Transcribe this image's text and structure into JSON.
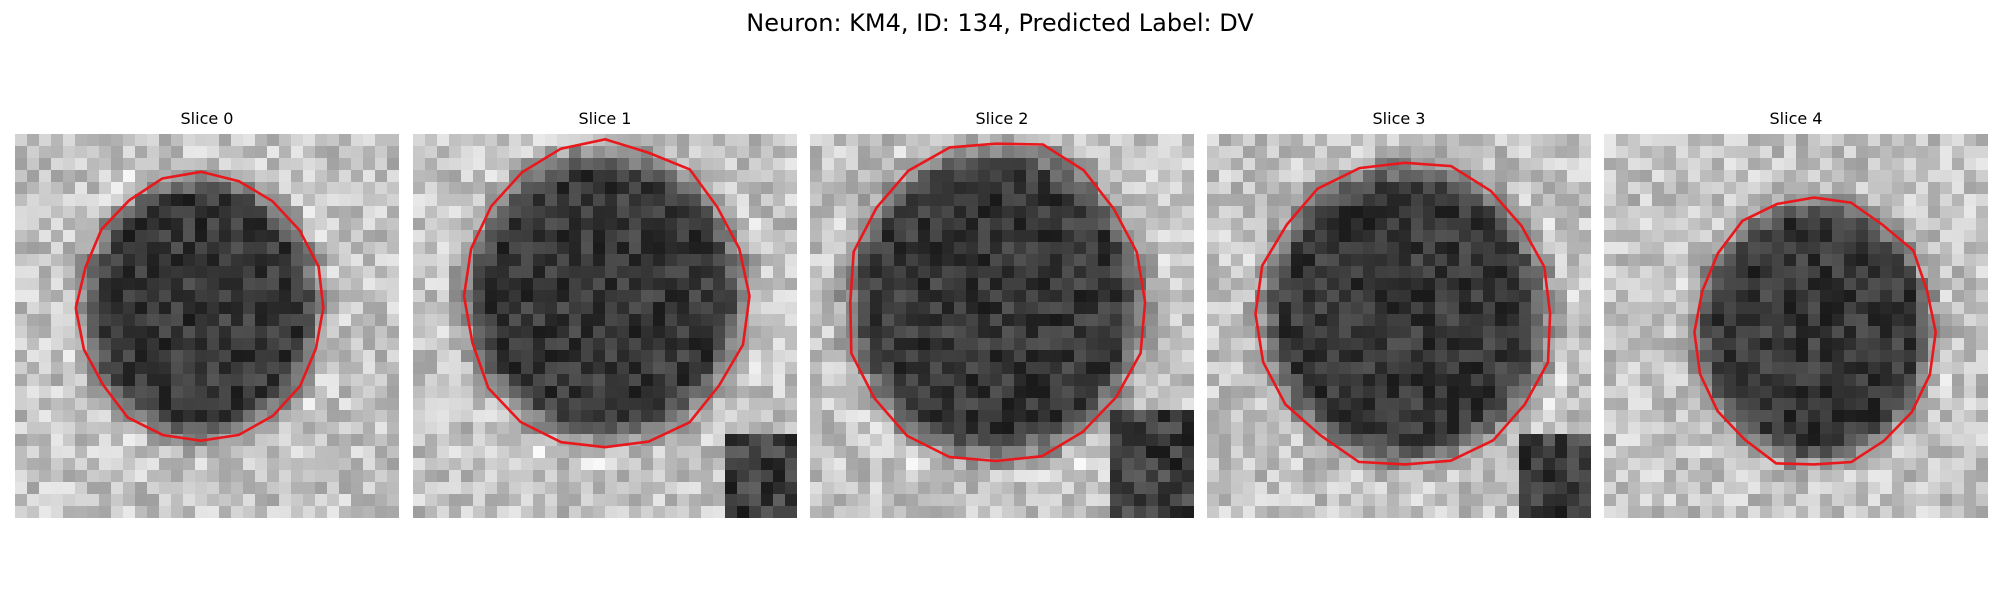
{
  "figure": {
    "title": "Neuron: KM4, ID: 134, Predicted Label: DV"
  },
  "panels": [
    {
      "title": "Slice 0"
    },
    {
      "title": "Slice 1"
    },
    {
      "title": "Slice 2"
    },
    {
      "title": "Slice 3"
    },
    {
      "title": "Slice 4"
    }
  ],
  "colors": {
    "contour": "#e8181c",
    "background": "#ffffff"
  }
}
